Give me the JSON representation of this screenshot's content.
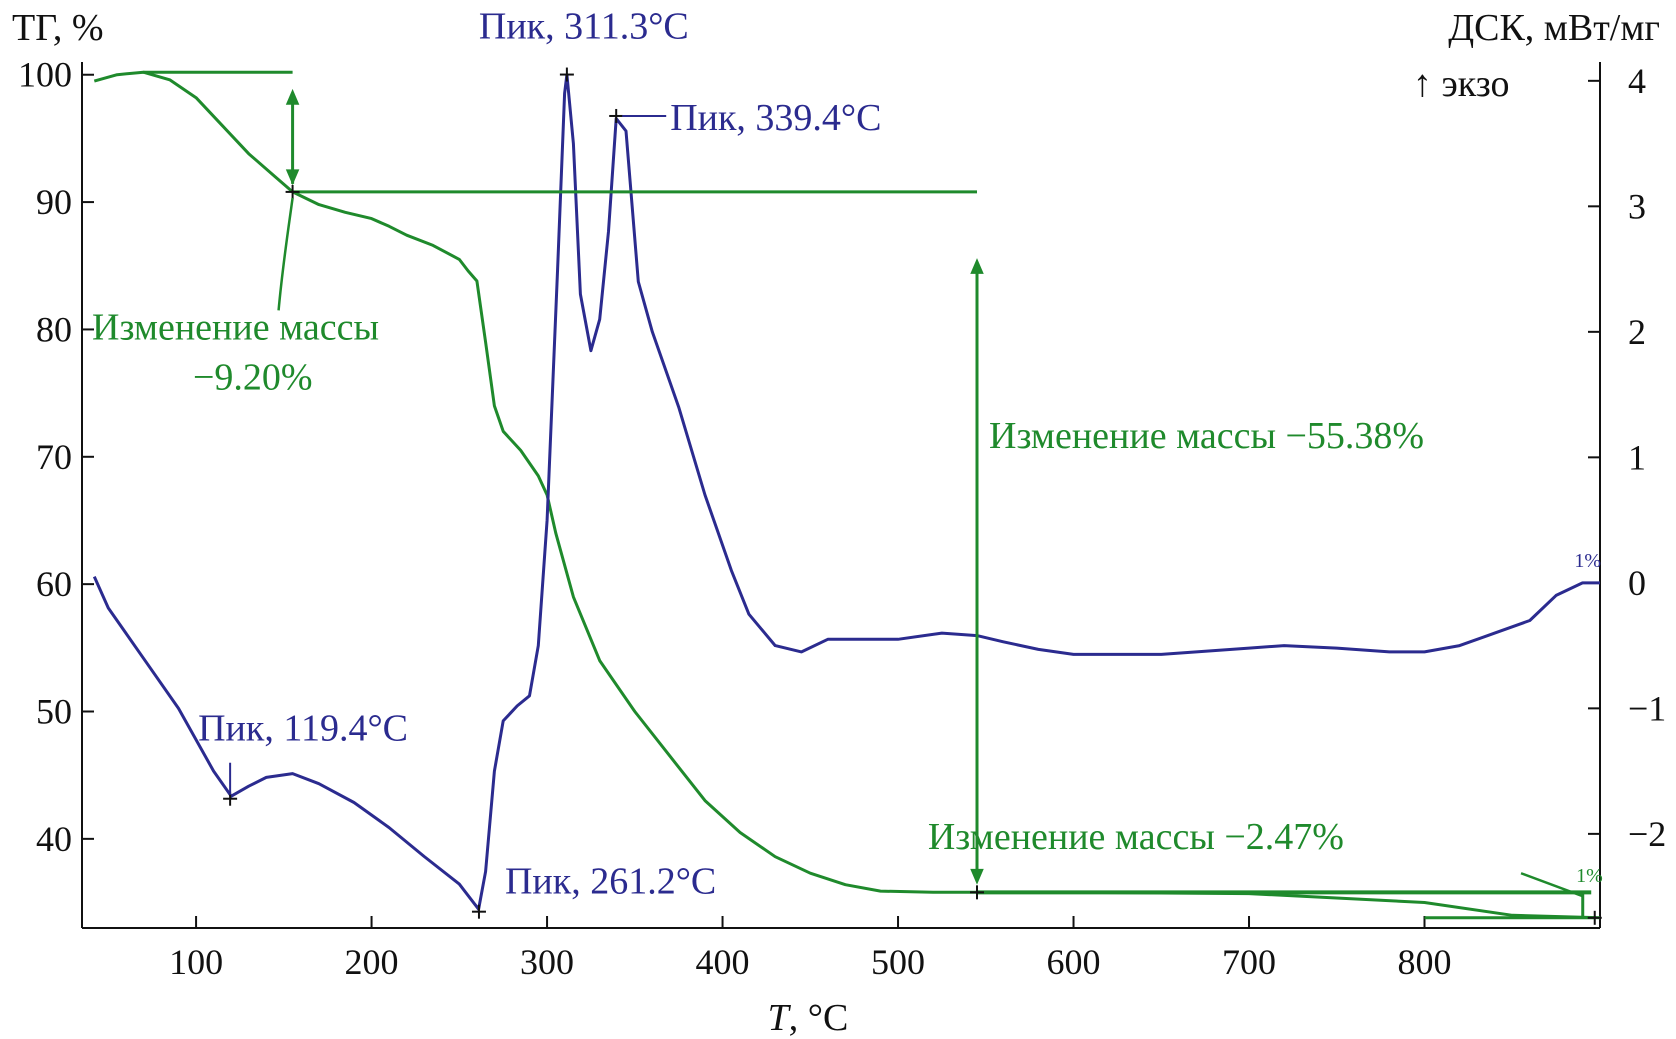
{
  "chart_data": {
    "type": "line",
    "xlabel": "T, °C",
    "ylabel_left": "ТГ, %",
    "ylabel_right": "ДСК, мВт/мг",
    "exo_label": "↑ экзо",
    "xlim": [
      35,
      900
    ],
    "ylim_left": [
      33,
      101
    ],
    "ylim_right": [
      -2.75,
      4.15
    ],
    "x_ticks": [
      100,
      200,
      300,
      400,
      500,
      600,
      700,
      800
    ],
    "y_left_ticks": [
      40,
      50,
      60,
      70,
      80,
      90,
      100
    ],
    "y_right_ticks": [
      -2,
      -1,
      0,
      1,
      2,
      3,
      4
    ],
    "grid": false,
    "colors": {
      "tg": "#1f8a2c",
      "dsc": "#2b2b8f",
      "axis": "#111111"
    },
    "series": [
      {
        "key": "tg",
        "axis": "left",
        "points": [
          [
            42,
            99.5
          ],
          [
            55,
            100
          ],
          [
            70,
            100.2
          ],
          [
            85,
            99.6
          ],
          [
            100,
            98.2
          ],
          [
            115,
            96
          ],
          [
            130,
            93.8
          ],
          [
            145,
            92
          ],
          [
            155,
            90.8
          ],
          [
            170,
            89.8
          ],
          [
            185,
            89.2
          ],
          [
            200,
            88.7
          ],
          [
            210,
            88.1
          ],
          [
            220,
            87.4
          ],
          [
            235,
            86.6
          ],
          [
            250,
            85.5
          ],
          [
            255,
            84.6
          ],
          [
            260,
            83.8
          ],
          [
            265,
            79
          ],
          [
            270,
            74
          ],
          [
            275,
            72
          ],
          [
            285,
            70.5
          ],
          [
            295,
            68.5
          ],
          [
            300,
            67
          ],
          [
            305,
            64
          ],
          [
            315,
            59
          ],
          [
            330,
            54
          ],
          [
            350,
            50
          ],
          [
            370,
            46.5
          ],
          [
            390,
            43
          ],
          [
            410,
            40.5
          ],
          [
            430,
            38.6
          ],
          [
            450,
            37.3
          ],
          [
            470,
            36.4
          ],
          [
            490,
            35.9
          ],
          [
            520,
            35.8
          ],
          [
            600,
            35.8
          ],
          [
            700,
            35.7
          ],
          [
            800,
            35
          ],
          [
            850,
            34
          ],
          [
            900,
            33.8
          ]
        ]
      },
      {
        "key": "dsc",
        "axis": "right",
        "points": [
          [
            42,
            0.05
          ],
          [
            50,
            -0.2
          ],
          [
            70,
            -0.6
          ],
          [
            90,
            -1
          ],
          [
            110,
            -1.5
          ],
          [
            120,
            -1.7
          ],
          [
            130,
            -1.62
          ],
          [
            140,
            -1.55
          ],
          [
            155,
            -1.52
          ],
          [
            170,
            -1.6
          ],
          [
            190,
            -1.75
          ],
          [
            210,
            -1.95
          ],
          [
            230,
            -2.18
          ],
          [
            250,
            -2.4
          ],
          [
            261,
            -2.6
          ],
          [
            265,
            -2.3
          ],
          [
            270,
            -1.5
          ],
          [
            275,
            -1.1
          ],
          [
            283,
            -0.98
          ],
          [
            290,
            -0.9
          ],
          [
            295,
            -0.5
          ],
          [
            300,
            0.5
          ],
          [
            306,
            2.5
          ],
          [
            310,
            3.9
          ],
          [
            311.3,
            4.05
          ],
          [
            315,
            3.5
          ],
          [
            319,
            2.3
          ],
          [
            325,
            1.85
          ],
          [
            330,
            2.1
          ],
          [
            335,
            2.8
          ],
          [
            339.4,
            3.7
          ],
          [
            345,
            3.6
          ],
          [
            352,
            2.4
          ],
          [
            360,
            2.0
          ],
          [
            375,
            1.4
          ],
          [
            390,
            0.7
          ],
          [
            405,
            0.1
          ],
          [
            415,
            -0.25
          ],
          [
            430,
            -0.5
          ],
          [
            445,
            -0.55
          ],
          [
            460,
            -0.45
          ],
          [
            480,
            -0.45
          ],
          [
            500,
            -0.45
          ],
          [
            525,
            -0.4
          ],
          [
            545,
            -0.42
          ],
          [
            560,
            -0.47
          ],
          [
            580,
            -0.53
          ],
          [
            600,
            -0.57
          ],
          [
            650,
            -0.57
          ],
          [
            700,
            -0.52
          ],
          [
            720,
            -0.5
          ],
          [
            750,
            -0.52
          ],
          [
            780,
            -0.55
          ],
          [
            800,
            -0.55
          ],
          [
            820,
            -0.5
          ],
          [
            840,
            -0.4
          ],
          [
            860,
            -0.3
          ],
          [
            875,
            -0.1
          ],
          [
            890,
            0
          ],
          [
            900,
            0
          ]
        ]
      }
    ],
    "peaks": [
      {
        "x": 119.4,
        "y": -1.72,
        "label": "Пик, 119.4°C"
      },
      {
        "x": 261.2,
        "y": -2.62,
        "label": "Пик, 261.2°C"
      },
      {
        "x": 311.3,
        "y": 4.05,
        "label": "Пик, 311.3°C"
      },
      {
        "x": 339.4,
        "y": 3.72,
        "label": "Пик, 339.4°C"
      }
    ],
    "mass_changes": [
      {
        "label_line1": "Изменение массы",
        "label_line2": "−9.20%",
        "value": -9.2
      },
      {
        "label_line1": "Изменение массы −55.38%",
        "value": -55.38
      },
      {
        "label_line1": "Изменение массы −2.47%",
        "value": -2.47
      }
    ],
    "end_marks": {
      "dsc": "1%",
      "tg": "1%"
    }
  }
}
